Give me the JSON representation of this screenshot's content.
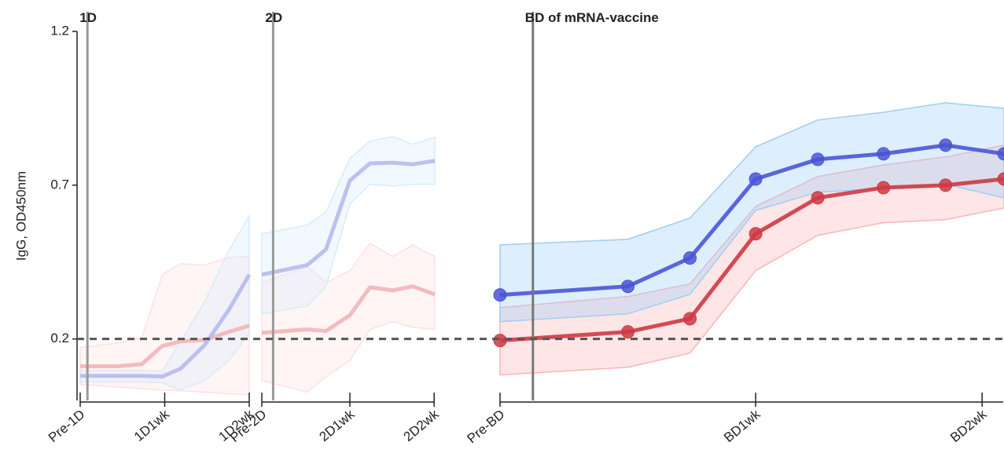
{
  "chart_data": {
    "type": "line",
    "ylabel": "IgG, OD450nm",
    "ylim": [
      0,
      1.2
    ],
    "yticks": [
      0.2,
      0.7,
      1.2
    ],
    "hline": 0.2,
    "panels": [
      {
        "title": "1D",
        "faded": true,
        "markers": false,
        "vline": 0.6,
        "xlim": [
          0,
          14
        ],
        "xticks": [
          {
            "value": 0,
            "label": "Pre-1D"
          },
          {
            "value": 7,
            "label": "1D1wk"
          },
          {
            "value": 14,
            "label": "1D2wk"
          }
        ],
        "x": [
          0,
          3.1,
          5.1,
          6.8,
          8.3,
          10.3,
          12.3,
          14
        ],
        "series": [
          {
            "color": "#e0464f",
            "band_color": "#fbb4b8",
            "values": [
              0.111,
              0.111,
              0.118,
              0.177,
              0.192,
              0.197,
              0.223,
              0.243
            ],
            "upper": [
              0.172,
              0.187,
              0.205,
              0.409,
              0.445,
              0.44,
              0.465,
              0.468
            ],
            "lower": [
              0.052,
              0.044,
              0.039,
              0.034,
              0.032,
              0.027,
              0.021,
              0.019
            ]
          },
          {
            "color": "#4a55d6",
            "band_color": "#9fcdf5",
            "values": [
              0.08,
              0.08,
              0.08,
              0.078,
              0.103,
              0.18,
              0.294,
              0.409
            ],
            "upper": [
              0.098,
              0.098,
              0.098,
              0.095,
              0.192,
              0.32,
              0.486,
              0.601
            ],
            "lower": [
              0.06,
              0.06,
              0.06,
              0.057,
              0.034,
              0.065,
              0.129,
              0.218
            ]
          }
        ]
      },
      {
        "title": "2D",
        "faded": true,
        "markers": false,
        "vline": 0.9,
        "xlim": [
          0,
          13.75
        ],
        "xticks": [
          {
            "value": 0,
            "label": "Pre-2D"
          },
          {
            "value": 7,
            "label": "2D1wk"
          },
          {
            "value": 13.7,
            "label": "2D2wk"
          }
        ],
        "x": [
          0,
          3.6,
          5.1,
          7,
          8.6,
          10.4,
          12,
          13.75
        ],
        "series": [
          {
            "color": "#e0464f",
            "band_color": "#fbb4b8",
            "values": [
              0.22,
              0.231,
              0.226,
              0.277,
              0.368,
              0.358,
              0.371,
              0.345
            ],
            "upper": [
              0.384,
              0.435,
              0.384,
              0.422,
              0.511,
              0.468,
              0.506,
              0.468
            ],
            "lower": [
              0.065,
              0.027,
              0.078,
              0.129,
              0.231,
              0.256,
              0.238,
              0.231
            ]
          },
          {
            "color": "#4a55d6",
            "band_color": "#9fcdf5",
            "values": [
              0.409,
              0.44,
              0.491,
              0.715,
              0.771,
              0.773,
              0.768,
              0.779
            ],
            "upper": [
              0.542,
              0.57,
              0.613,
              0.787,
              0.843,
              0.858,
              0.833,
              0.856
            ],
            "lower": [
              0.282,
              0.307,
              0.371,
              0.639,
              0.703,
              0.697,
              0.703,
              0.703
            ]
          }
        ]
      },
      {
        "title": "BD of mRNA-vaccine",
        "faded": false,
        "markers": true,
        "vline": 0.9,
        "xlim": [
          0,
          13.8
        ],
        "xticks": [
          {
            "value": 0,
            "label": "Pre-BD"
          },
          {
            "value": 7,
            "label": "BD1wk"
          },
          {
            "value": 13.2,
            "label": "BD2wk"
          }
        ],
        "x": [
          0,
          3.5,
          5.2,
          7,
          8.7,
          10.5,
          12.2,
          13.8
        ],
        "series": [
          {
            "color": "#cc3a44",
            "band_color": "#fbb4b8",
            "values": [
              0.195,
              0.223,
              0.266,
              0.542,
              0.659,
              0.692,
              0.7,
              0.72
            ],
            "upper": [
              0.302,
              0.338,
              0.379,
              0.631,
              0.728,
              0.766,
              0.792,
              0.83
            ],
            "lower": [
              0.083,
              0.108,
              0.154,
              0.422,
              0.537,
              0.578,
              0.588,
              0.626
            ]
          },
          {
            "color": "#4a55d6",
            "band_color": "#9fcdf5",
            "values": [
              0.343,
              0.371,
              0.463,
              0.72,
              0.784,
              0.802,
              0.83,
              0.802
            ],
            "upper": [
              0.506,
              0.524,
              0.593,
              0.825,
              0.912,
              0.937,
              0.968,
              0.95
            ],
            "lower": [
              0.256,
              0.282,
              0.345,
              0.618,
              0.677,
              0.69,
              0.703,
              0.659
            ]
          }
        ]
      }
    ]
  }
}
